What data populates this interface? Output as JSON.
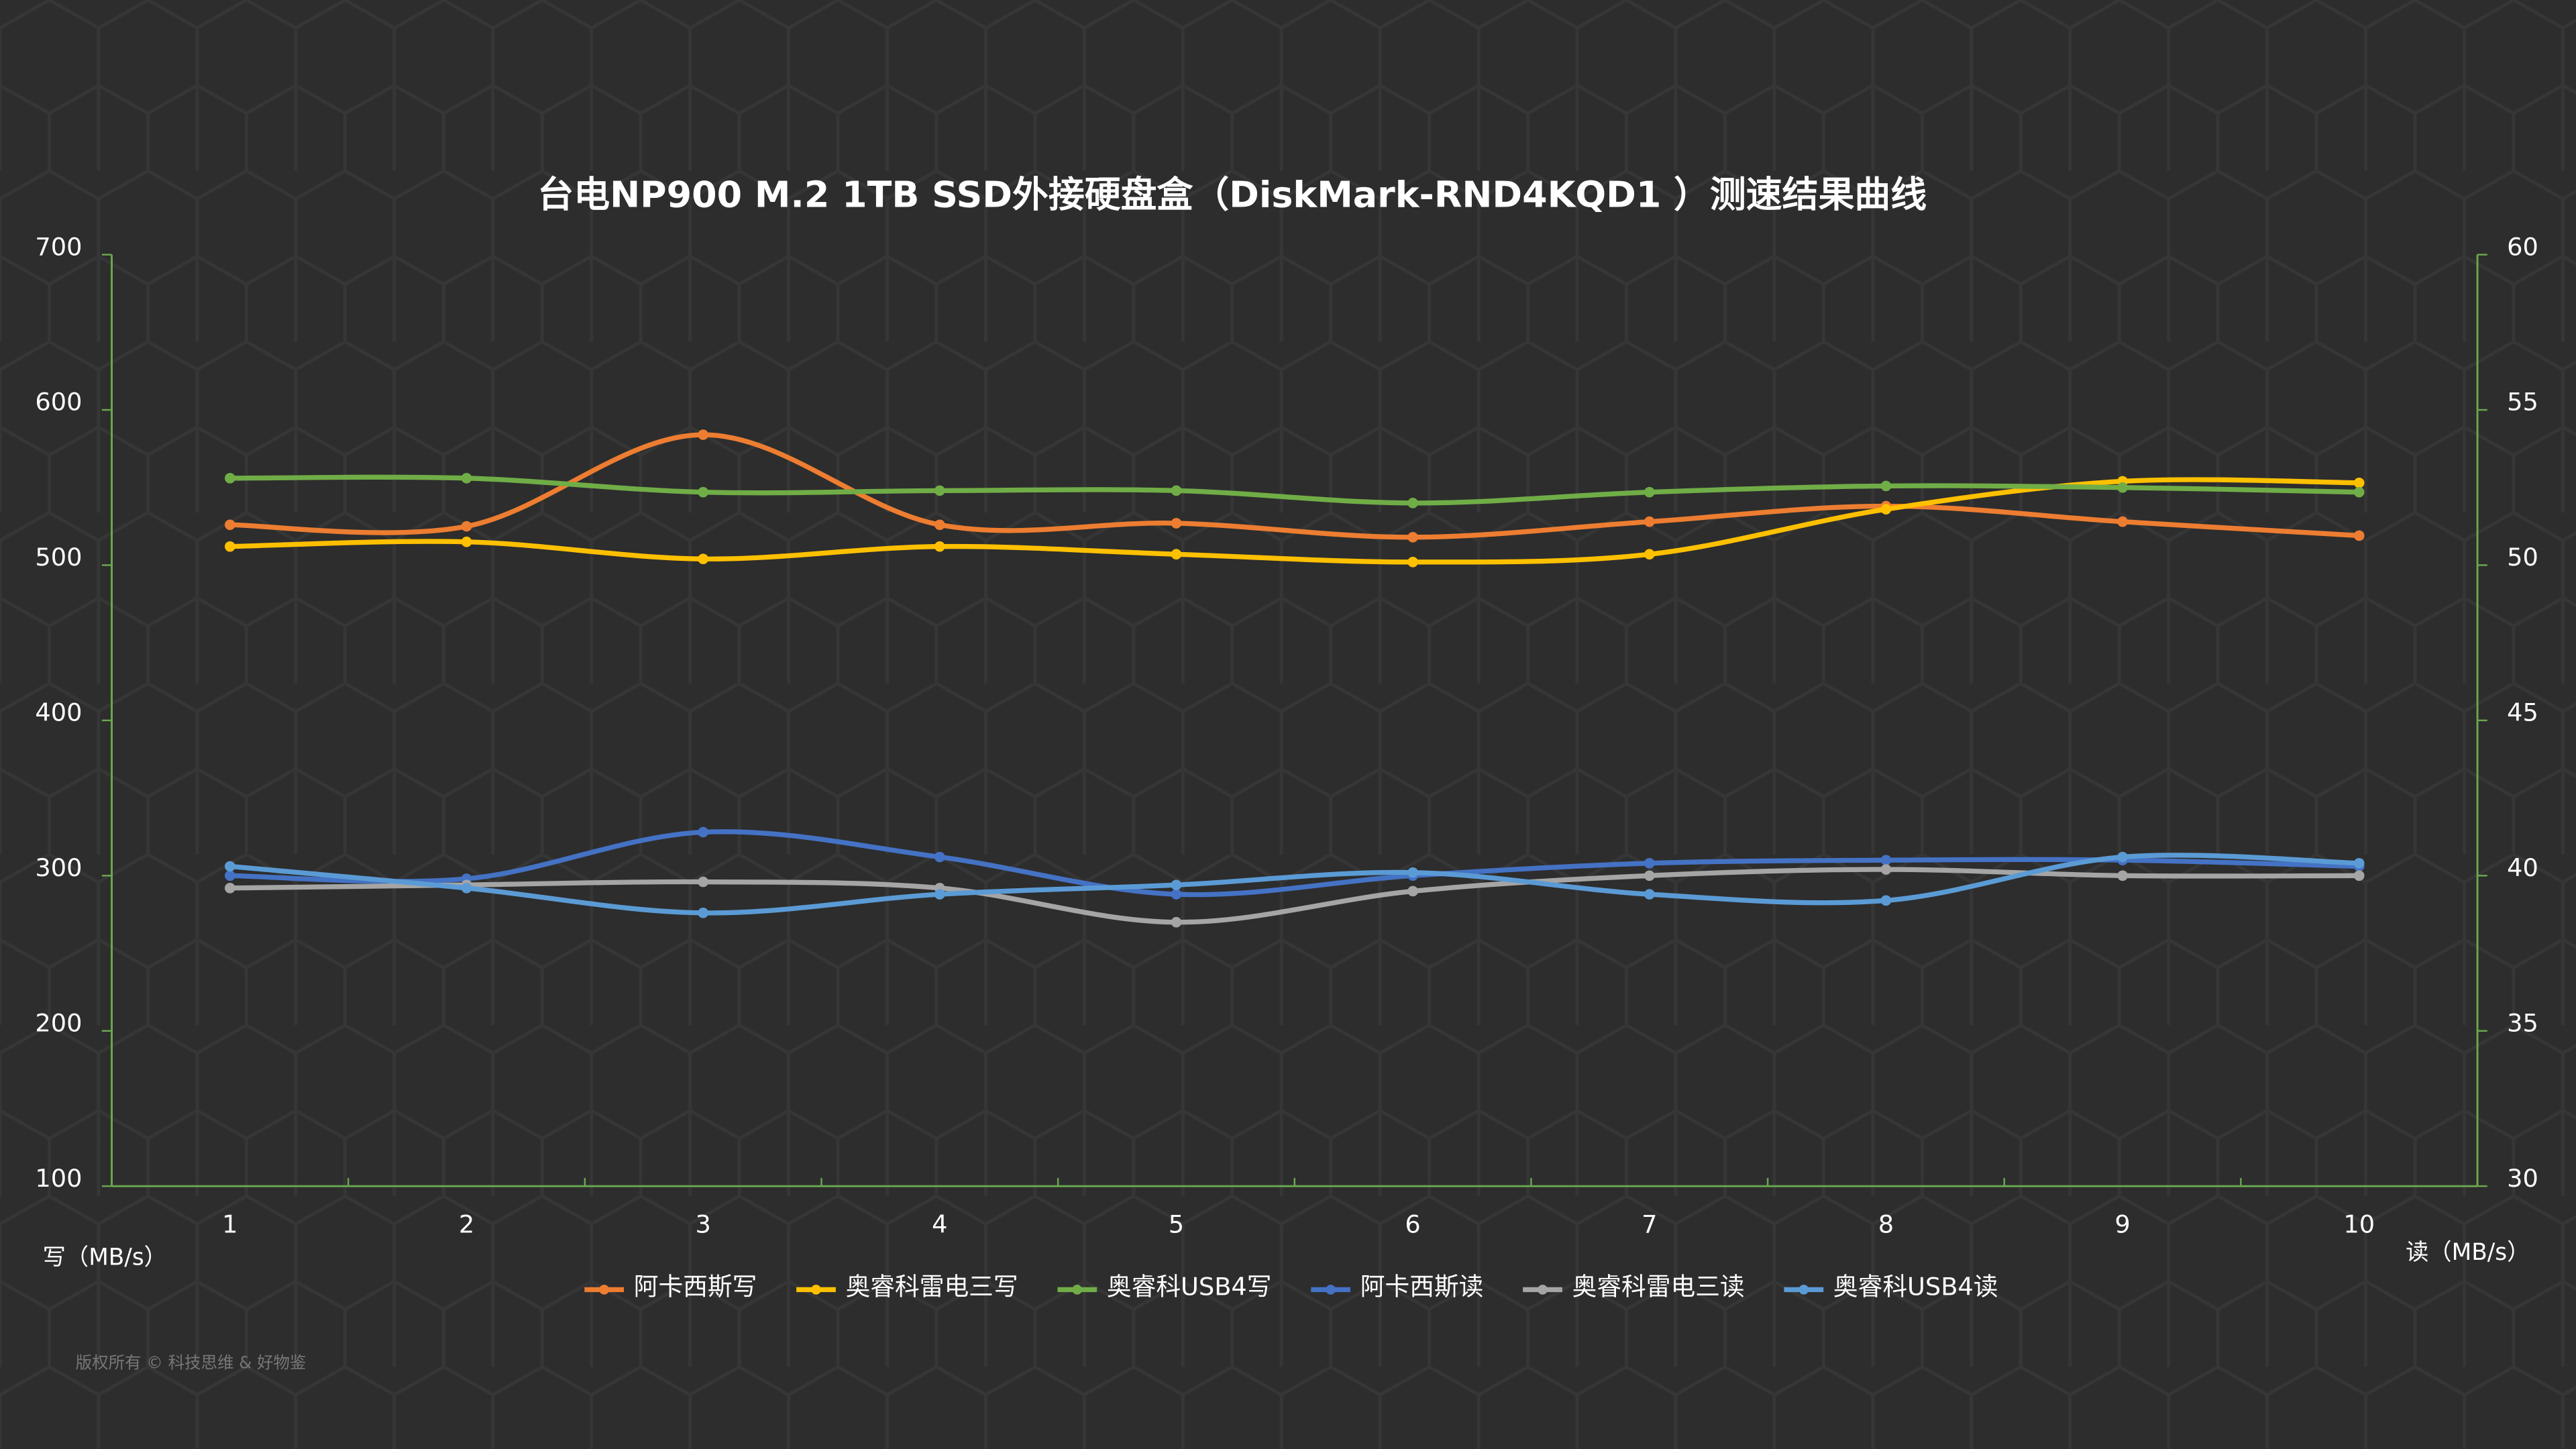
{
  "chart_data": {
    "type": "line",
    "title": "台电NP900 M.2 1TB SSD外接硬盘盒（DiskMark-RND4KQD1 ）测速结果曲线",
    "categories": [
      "1",
      "2",
      "3",
      "4",
      "5",
      "6",
      "7",
      "8",
      "9",
      "10"
    ],
    "y_label": "写（MB/s）",
    "y2_label": "读（MB/s）",
    "ylim": [
      100,
      700
    ],
    "yticks": [
      100,
      200,
      300,
      400,
      500,
      600,
      700
    ],
    "y2lim": [
      30,
      60
    ],
    "y2ticks": [
      30,
      35,
      40,
      45,
      50,
      55,
      60
    ],
    "legend": "bottom",
    "series": [
      {
        "name": "阿卡西斯写",
        "color": "#ed7d31",
        "values": [
          526,
          525,
          584,
          526,
          527,
          518,
          528,
          538,
          528,
          519
        ]
      },
      {
        "name": "奥睿科雷电三写",
        "color": "#ffc000",
        "values": [
          512,
          515,
          504,
          512,
          507,
          502,
          507,
          536,
          554,
          553
        ]
      },
      {
        "name": "奥睿科USB4写",
        "color": "#70ad47",
        "values": [
          556,
          556,
          547,
          548,
          548,
          540,
          547,
          551,
          550,
          547
        ]
      },
      {
        "name": "阿卡西斯读",
        "color": "#4472c4",
        "axis": "y2",
        "values": [
          40.0,
          39.9,
          41.4,
          40.6,
          39.4,
          40.0,
          40.4,
          40.5,
          40.5,
          40.3
        ]
      },
      {
        "name": "奥睿科雷电三读",
        "color": "#a5a5a5",
        "axis": "y2",
        "values": [
          39.6,
          39.7,
          39.8,
          39.6,
          38.5,
          39.5,
          40.0,
          40.2,
          40.0,
          40.0
        ]
      },
      {
        "name": "奥睿科USB4读",
        "color": "#5b9bd5",
        "axis": "y2",
        "values": [
          40.3,
          39.6,
          38.8,
          39.4,
          39.7,
          40.1,
          39.4,
          39.2,
          40.6,
          40.4
        ]
      }
    ],
    "copyright": "版权所有 © 科技思维 & 好物鉴"
  }
}
